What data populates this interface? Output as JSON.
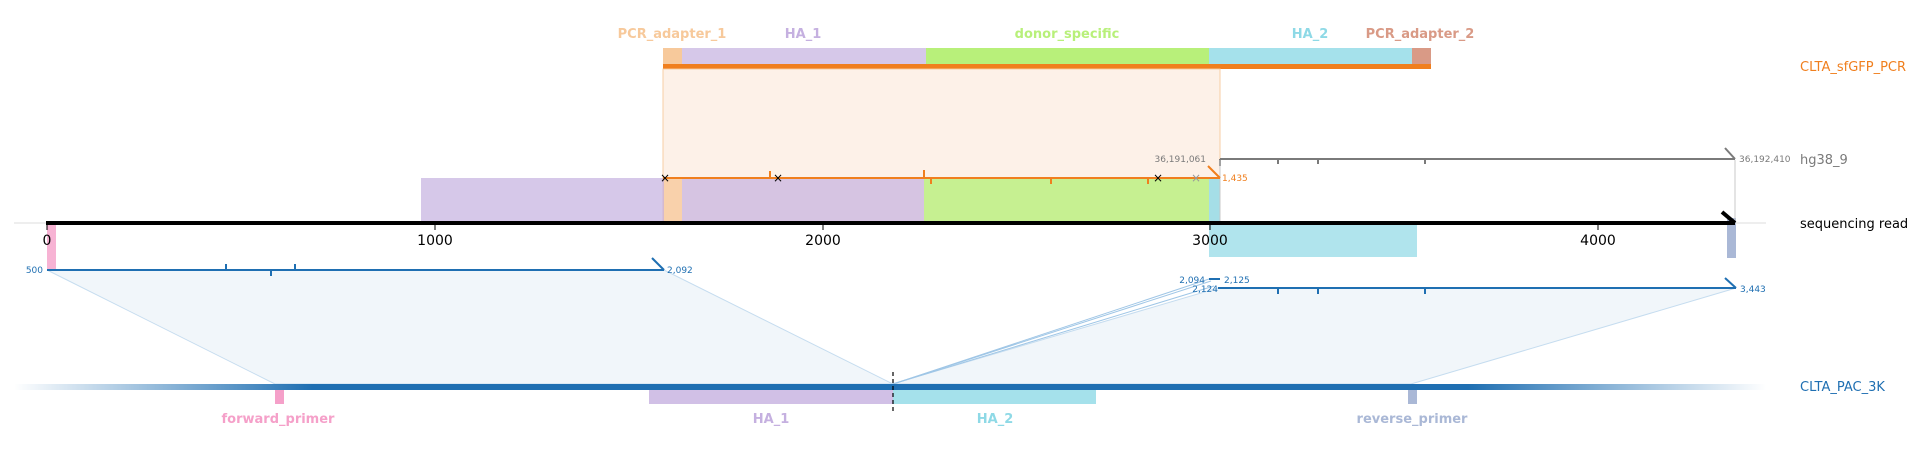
{
  "colors": {
    "pcr_adapter_1": "#f7c99b",
    "ha_1": "#c5b0e0",
    "donor_specific": "#b8f07a",
    "ha_2": "#8ed9e6",
    "pcr_adapter_2": "#d99a86",
    "forward_primer": "#f5a0c9",
    "reverse_primer": "#aab8d6",
    "orange": "#f07f1e",
    "blue": "#1f6fb2",
    "gray": "#7a7a7a"
  },
  "top_features": [
    {
      "key": "pcr_adapter_1",
      "label": "PCR_adapter_1"
    },
    {
      "key": "ha_1",
      "label": "HA_1"
    },
    {
      "key": "donor_specific",
      "label": "donor_specific"
    },
    {
      "key": "ha_2",
      "label": "HA_2"
    },
    {
      "key": "pcr_adapter_2",
      "label": "PCR_adapter_2"
    }
  ],
  "bottom_features": [
    {
      "key": "forward_primer",
      "label": "forward_primer"
    },
    {
      "key": "ha_1",
      "label": "HA_1"
    },
    {
      "key": "ha_2",
      "label": "HA_2"
    },
    {
      "key": "reverse_primer",
      "label": "reverse_primer"
    }
  ],
  "tracks": {
    "pcr": "CLTA_sfGFP_PCR",
    "genome": "hg38_9",
    "read": "sequencing read",
    "pac": "CLTA_PAC_3K"
  },
  "read_axis": {
    "ticks": [
      0,
      1000,
      2000,
      3000,
      4000
    ],
    "tick_labels": [
      "0",
      "1000",
      "2000",
      "3000",
      "4000"
    ],
    "length": 4350
  },
  "coords": {
    "genome_start": "36,191,061",
    "genome_end": "36,192,410",
    "orange_end": "1,435",
    "pac_a_start": "500",
    "pac_a_end": "2,092",
    "pac_b_1": "2,094",
    "pac_b_2": "2,125",
    "pac_b_3": "2,124",
    "pac_b_end": "3,443"
  }
}
